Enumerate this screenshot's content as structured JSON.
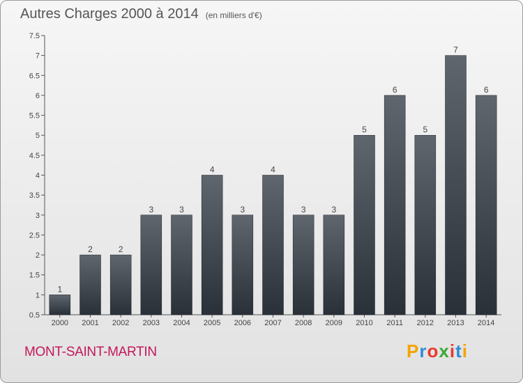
{
  "chart_data": {
    "type": "bar",
    "title": "Autres Charges 2000 à 2014",
    "subtitle": "(en milliers d'€)",
    "categories": [
      "2000",
      "2001",
      "2002",
      "2003",
      "2004",
      "2005",
      "2006",
      "2007",
      "2008",
      "2009",
      "2010",
      "2011",
      "2012",
      "2013",
      "2014"
    ],
    "values": [
      1,
      2,
      2,
      3,
      3,
      4,
      3,
      4,
      3,
      3,
      5,
      6,
      5,
      7,
      6
    ],
    "data_labels": [
      "1",
      "2",
      "2",
      "3",
      "3",
      "4",
      "3",
      "4",
      "3",
      "3",
      "5",
      "6",
      "5",
      "7",
      "6"
    ],
    "ylim": [
      0.5,
      7.5
    ],
    "yticks": [
      0.5,
      1,
      1.5,
      2,
      2.5,
      3,
      3.5,
      4,
      4.5,
      5,
      5.5,
      6,
      6.5,
      7,
      7.5
    ],
    "ytick_labels": [
      "0.5",
      "1",
      "1.5",
      "2",
      "2.5",
      "3",
      "3.5",
      "4",
      "4.5",
      "5",
      "5.5",
      "6",
      "6.5",
      "7",
      "7.5"
    ],
    "grid": false,
    "bar_color": "#3a4048"
  },
  "footer": {
    "commune": "MONT-SAINT-MARTIN",
    "logo_letters": [
      "P",
      "r",
      "o",
      "x",
      "i",
      "t",
      "i"
    ],
    "logo_colors": [
      "#f4a300",
      "#2b8fd8",
      "#e63b2e",
      "#3aa935",
      "#e63b2e",
      "#2b8fd8",
      "#f4a300"
    ]
  }
}
